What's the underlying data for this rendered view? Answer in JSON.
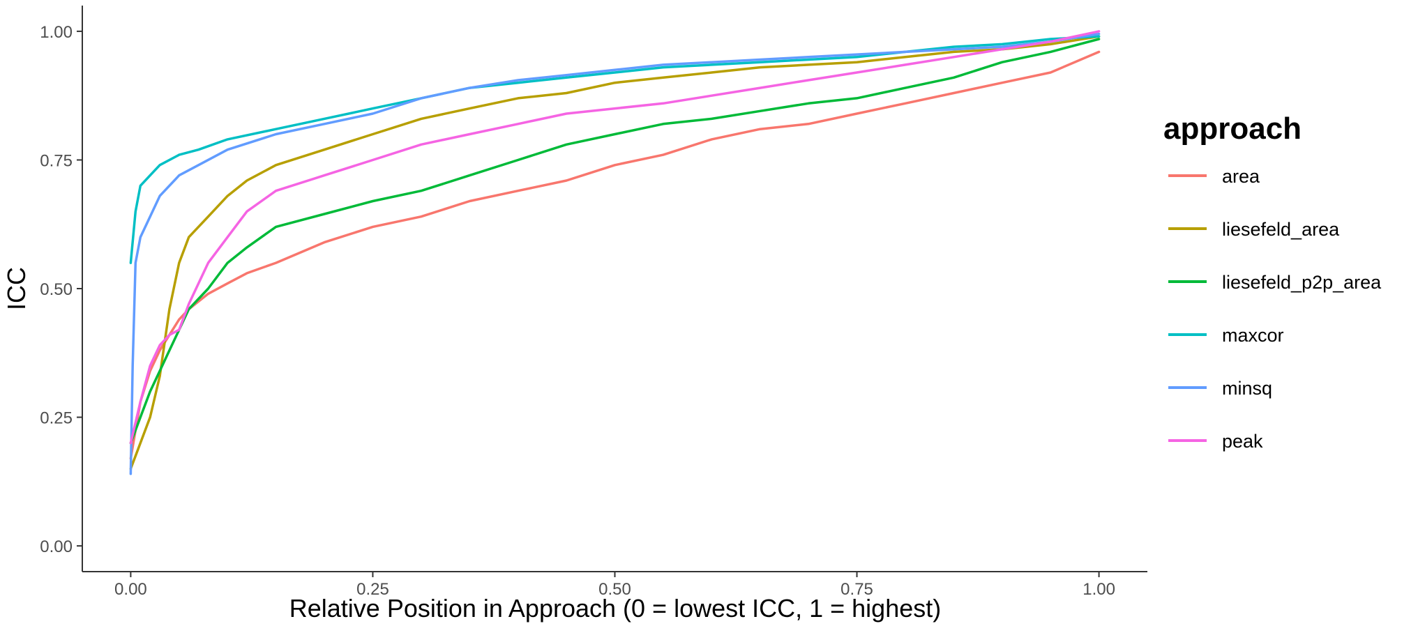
{
  "chart_data": {
    "type": "line",
    "title": "",
    "xlabel": "Relative Position in Approach (0 = lowest ICC, 1 = highest)",
    "ylabel": "ICC",
    "xlim": [
      -0.05,
      1.05
    ],
    "ylim": [
      -0.05,
      1.05
    ],
    "x_ticks": [
      0,
      0.25,
      0.5,
      0.75,
      1
    ],
    "x_tick_labels": [
      "0.00",
      "0.25",
      "0.50",
      "0.75",
      "1.00"
    ],
    "y_ticks": [
      0,
      0.25,
      0.5,
      0.75,
      1
    ],
    "y_tick_labels": [
      "0.00",
      "0.25",
      "0.50",
      "0.75",
      "1.00"
    ],
    "grid": false,
    "legend": {
      "title": "approach",
      "position": "right"
    },
    "series": [
      {
        "name": "area",
        "color": "#F8766D",
        "points": [
          [
            0,
            0.17
          ],
          [
            0.01,
            0.28
          ],
          [
            0.02,
            0.34
          ],
          [
            0.03,
            0.38
          ],
          [
            0.04,
            0.41
          ],
          [
            0.05,
            0.44
          ],
          [
            0.06,
            0.46
          ],
          [
            0.08,
            0.49
          ],
          [
            0.1,
            0.51
          ],
          [
            0.12,
            0.53
          ],
          [
            0.15,
            0.55
          ],
          [
            0.2,
            0.59
          ],
          [
            0.25,
            0.62
          ],
          [
            0.3,
            0.64
          ],
          [
            0.35,
            0.67
          ],
          [
            0.4,
            0.69
          ],
          [
            0.45,
            0.71
          ],
          [
            0.5,
            0.74
          ],
          [
            0.55,
            0.76
          ],
          [
            0.6,
            0.79
          ],
          [
            0.65,
            0.81
          ],
          [
            0.7,
            0.82
          ],
          [
            0.75,
            0.84
          ],
          [
            0.8,
            0.86
          ],
          [
            0.85,
            0.88
          ],
          [
            0.9,
            0.9
          ],
          [
            0.95,
            0.92
          ],
          [
            1,
            0.96
          ]
        ]
      },
      {
        "name": "liesefeld_area",
        "color": "#B79F00",
        "points": [
          [
            0,
            0.15
          ],
          [
            0.01,
            0.2
          ],
          [
            0.02,
            0.25
          ],
          [
            0.03,
            0.33
          ],
          [
            0.04,
            0.46
          ],
          [
            0.05,
            0.55
          ],
          [
            0.06,
            0.6
          ],
          [
            0.08,
            0.64
          ],
          [
            0.1,
            0.68
          ],
          [
            0.12,
            0.71
          ],
          [
            0.15,
            0.74
          ],
          [
            0.2,
            0.77
          ],
          [
            0.25,
            0.8
          ],
          [
            0.3,
            0.83
          ],
          [
            0.35,
            0.85
          ],
          [
            0.4,
            0.87
          ],
          [
            0.45,
            0.88
          ],
          [
            0.5,
            0.9
          ],
          [
            0.55,
            0.91
          ],
          [
            0.6,
            0.92
          ],
          [
            0.65,
            0.93
          ],
          [
            0.7,
            0.935
          ],
          [
            0.75,
            0.94
          ],
          [
            0.8,
            0.95
          ],
          [
            0.85,
            0.96
          ],
          [
            0.9,
            0.965
          ],
          [
            0.95,
            0.975
          ],
          [
            1,
            0.99
          ]
        ]
      },
      {
        "name": "liesefeld_p2p_area",
        "color": "#00BA38",
        "points": [
          [
            0,
            0.2
          ],
          [
            0.01,
            0.25
          ],
          [
            0.02,
            0.3
          ],
          [
            0.03,
            0.34
          ],
          [
            0.04,
            0.38
          ],
          [
            0.05,
            0.42
          ],
          [
            0.06,
            0.46
          ],
          [
            0.08,
            0.5
          ],
          [
            0.1,
            0.55
          ],
          [
            0.12,
            0.58
          ],
          [
            0.15,
            0.62
          ],
          [
            0.2,
            0.645
          ],
          [
            0.25,
            0.67
          ],
          [
            0.3,
            0.69
          ],
          [
            0.35,
            0.72
          ],
          [
            0.4,
            0.75
          ],
          [
            0.45,
            0.78
          ],
          [
            0.5,
            0.8
          ],
          [
            0.55,
            0.82
          ],
          [
            0.6,
            0.83
          ],
          [
            0.65,
            0.845
          ],
          [
            0.7,
            0.86
          ],
          [
            0.75,
            0.87
          ],
          [
            0.8,
            0.89
          ],
          [
            0.85,
            0.91
          ],
          [
            0.9,
            0.94
          ],
          [
            0.95,
            0.96
          ],
          [
            1,
            0.985
          ]
        ]
      },
      {
        "name": "maxcor",
        "color": "#00BFC4",
        "points": [
          [
            0,
            0.55
          ],
          [
            0.005,
            0.65
          ],
          [
            0.01,
            0.7
          ],
          [
            0.02,
            0.72
          ],
          [
            0.03,
            0.74
          ],
          [
            0.05,
            0.76
          ],
          [
            0.07,
            0.77
          ],
          [
            0.1,
            0.79
          ],
          [
            0.15,
            0.81
          ],
          [
            0.2,
            0.83
          ],
          [
            0.25,
            0.85
          ],
          [
            0.3,
            0.87
          ],
          [
            0.35,
            0.89
          ],
          [
            0.4,
            0.9
          ],
          [
            0.45,
            0.91
          ],
          [
            0.5,
            0.92
          ],
          [
            0.55,
            0.93
          ],
          [
            0.6,
            0.935
          ],
          [
            0.65,
            0.94
          ],
          [
            0.7,
            0.945
          ],
          [
            0.75,
            0.95
          ],
          [
            0.8,
            0.96
          ],
          [
            0.85,
            0.97
          ],
          [
            0.9,
            0.975
          ],
          [
            0.95,
            0.985
          ],
          [
            1,
            0.99
          ]
        ]
      },
      {
        "name": "minsq",
        "color": "#619CFF",
        "points": [
          [
            0,
            0.14
          ],
          [
            0.002,
            0.35
          ],
          [
            0.005,
            0.55
          ],
          [
            0.01,
            0.6
          ],
          [
            0.02,
            0.64
          ],
          [
            0.03,
            0.68
          ],
          [
            0.05,
            0.72
          ],
          [
            0.07,
            0.74
          ],
          [
            0.1,
            0.77
          ],
          [
            0.15,
            0.8
          ],
          [
            0.2,
            0.82
          ],
          [
            0.25,
            0.84
          ],
          [
            0.3,
            0.87
          ],
          [
            0.35,
            0.89
          ],
          [
            0.4,
            0.905
          ],
          [
            0.45,
            0.915
          ],
          [
            0.5,
            0.925
          ],
          [
            0.55,
            0.935
          ],
          [
            0.6,
            0.94
          ],
          [
            0.65,
            0.945
          ],
          [
            0.7,
            0.95
          ],
          [
            0.75,
            0.955
          ],
          [
            0.8,
            0.96
          ],
          [
            0.85,
            0.965
          ],
          [
            0.9,
            0.97
          ],
          [
            0.95,
            0.98
          ],
          [
            1,
            0.995
          ]
        ]
      },
      {
        "name": "peak",
        "color": "#F564E3",
        "points": [
          [
            0,
            0.2
          ],
          [
            0.01,
            0.28
          ],
          [
            0.02,
            0.35
          ],
          [
            0.03,
            0.39
          ],
          [
            0.04,
            0.41
          ],
          [
            0.05,
            0.42
          ],
          [
            0.06,
            0.47
          ],
          [
            0.08,
            0.55
          ],
          [
            0.1,
            0.6
          ],
          [
            0.12,
            0.65
          ],
          [
            0.15,
            0.69
          ],
          [
            0.2,
            0.72
          ],
          [
            0.25,
            0.75
          ],
          [
            0.3,
            0.78
          ],
          [
            0.35,
            0.8
          ],
          [
            0.4,
            0.82
          ],
          [
            0.45,
            0.84
          ],
          [
            0.5,
            0.85
          ],
          [
            0.55,
            0.86
          ],
          [
            0.6,
            0.875
          ],
          [
            0.65,
            0.89
          ],
          [
            0.7,
            0.905
          ],
          [
            0.75,
            0.92
          ],
          [
            0.8,
            0.935
          ],
          [
            0.85,
            0.95
          ],
          [
            0.9,
            0.965
          ],
          [
            0.95,
            0.98
          ],
          [
            1,
            1.0
          ]
        ]
      }
    ]
  }
}
